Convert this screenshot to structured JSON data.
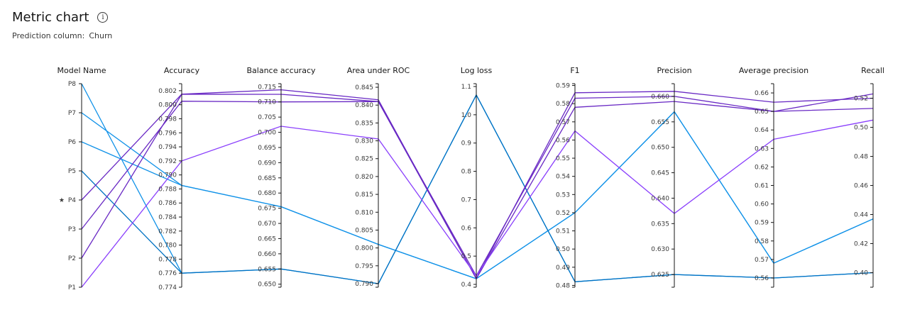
{
  "header": {
    "title": "Metric chart",
    "info_icon": "info-icon",
    "subtitle_label": "Prediction column:",
    "subtitle_value": "Churn"
  },
  "chart_data": {
    "type": "parallel-coordinates",
    "title": "Metric chart",
    "colors": [
      "#1192e8",
      "#6929c4",
      "#0072c3",
      "#8a3ffc"
    ],
    "highlighted_model": "P4",
    "axes": [
      {
        "name": "Model Name",
        "categorical": true,
        "categories": [
          "P8",
          "P7",
          "P6",
          "P5",
          "P4",
          "P3",
          "P2",
          "P1"
        ],
        "tick_labels": [
          "P8",
          "P7",
          "P6",
          "P5",
          "P4",
          "P3",
          "P2",
          "P1"
        ]
      },
      {
        "name": "Accuracy",
        "range": [
          0.774,
          0.803
        ],
        "tick_labels": [
          "0.774",
          "0.776",
          "0.778",
          "0.780",
          "0.782",
          "0.784",
          "0.786",
          "0.788",
          "0.790",
          "0.792",
          "0.794",
          "0.796",
          "0.798",
          "0.800",
          "0.802"
        ]
      },
      {
        "name": "Balance accuracy",
        "range": [
          0.649,
          0.716
        ],
        "tick_labels": [
          "0.650",
          "0.655",
          "0.660",
          "0.665",
          "0.670",
          "0.675",
          "0.680",
          "0.685",
          "0.690",
          "0.695",
          "0.700",
          "0.705",
          "0.710",
          "0.715"
        ]
      },
      {
        "name": "Area under ROC",
        "range": [
          0.789,
          0.846
        ],
        "tick_labels": [
          "0.790",
          "0.795",
          "0.800",
          "0.805",
          "0.810",
          "0.815",
          "0.820",
          "0.825",
          "0.830",
          "0.835",
          "0.840",
          "0.845"
        ]
      },
      {
        "name": "Log loss",
        "range": [
          0.39,
          1.11
        ],
        "tick_labels": [
          "0.4",
          "0.5",
          "0.6",
          "0.7",
          "0.8",
          "0.9",
          "1.0",
          "1.1"
        ]
      },
      {
        "name": "F1",
        "range": [
          0.479,
          0.591
        ],
        "tick_labels": [
          "0.48",
          "0.49",
          "0.50",
          "0.51",
          "0.52",
          "0.53",
          "0.54",
          "0.55",
          "0.56",
          "0.57",
          "0.58",
          "0.59"
        ]
      },
      {
        "name": "Precision",
        "range": [
          0.6225,
          0.6625
        ],
        "tick_labels": [
          "0.625",
          "0.630",
          "0.635",
          "0.640",
          "0.645",
          "0.650",
          "0.655",
          "0.660"
        ]
      },
      {
        "name": "Average precision",
        "range": [
          0.555,
          0.665
        ],
        "tick_labels": [
          "0.56",
          "0.57",
          "0.58",
          "0.59",
          "0.60",
          "0.61",
          "0.62",
          "0.63",
          "0.64",
          "0.65",
          "0.66"
        ]
      },
      {
        "name": "Recall",
        "range": [
          0.39,
          0.53
        ],
        "tick_labels": [
          "0.40",
          "0.42",
          "0.44",
          "0.46",
          "0.48",
          "0.50",
          "0.52"
        ]
      }
    ],
    "series": [
      {
        "model": "P8",
        "color": "#1192e8",
        "values": [
          "P8",
          0.776,
          0.655,
          0.79,
          1.07,
          0.482,
          0.625,
          0.56,
          0.4
        ]
      },
      {
        "model": "P7",
        "color": "#1192e8",
        "values": [
          "P7",
          0.7885,
          0.6755,
          0.801,
          0.42,
          0.52,
          0.657,
          0.568,
          0.437
        ]
      },
      {
        "model": "P6",
        "color": "#1192e8",
        "values": [
          "P6",
          0.7885,
          0.6755,
          0.801,
          0.42,
          0.52,
          0.657,
          0.568,
          0.437
        ]
      },
      {
        "model": "P5",
        "color": "#0072c3",
        "values": [
          "P5",
          0.776,
          0.655,
          0.79,
          1.07,
          0.482,
          0.625,
          0.56,
          0.4
        ]
      },
      {
        "model": "P4",
        "color": "#6929c4",
        "values": [
          "P4",
          0.8015,
          0.7125,
          0.841,
          0.42,
          0.578,
          0.659,
          0.65,
          0.523
        ]
      },
      {
        "model": "P3",
        "color": "#6929c4",
        "values": [
          "P3",
          0.8005,
          0.71,
          0.841,
          0.43,
          0.583,
          0.66,
          0.65,
          0.513
        ]
      },
      {
        "model": "P2",
        "color": "#6929c4",
        "values": [
          "P2",
          0.8015,
          0.714,
          0.8415,
          0.42,
          0.586,
          0.661,
          0.655,
          0.52
        ]
      },
      {
        "model": "P1",
        "color": "#8a3ffc",
        "values": [
          "P1",
          0.792,
          0.702,
          0.8305,
          0.43,
          0.565,
          0.637,
          0.635,
          0.505
        ]
      }
    ]
  }
}
